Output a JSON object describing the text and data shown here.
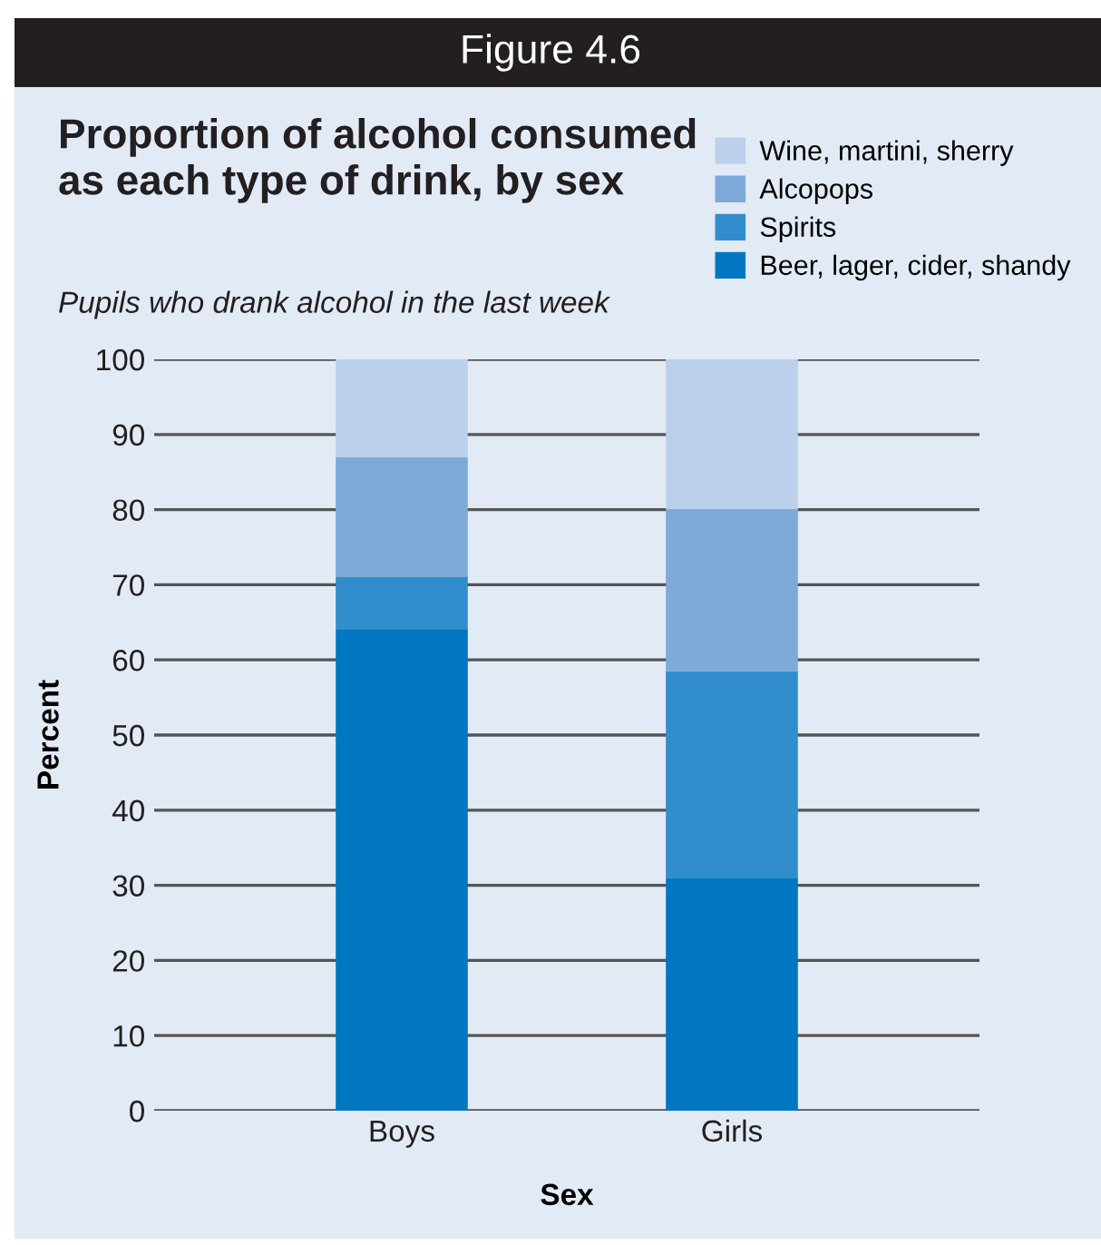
{
  "chart_data": {
    "type": "bar",
    "title": "Proportion of alcohol consumed as each type of drink, by sex",
    "subtitle": "Pupils who drank alcohol in the last week",
    "annotations": [
      "Figure 4.6"
    ],
    "xlabel": "Sex",
    "ylabel": "Percent",
    "categories": [
      "Boys",
      "Girls"
    ],
    "stacked": true,
    "series": [
      {
        "name": "Beer, lager, cider, shandy",
        "color": "#0077c0",
        "values": [
          64,
          31
        ]
      },
      {
        "name": "Spirits",
        "color": "#318dcc",
        "values": [
          7,
          27.5
        ]
      },
      {
        "name": "Alcopops",
        "color": "#7daad9",
        "values": [
          16,
          21.5
        ]
      },
      {
        "name": "Wine, martini, sherry",
        "color": "#bbd0ea",
        "values": [
          13,
          20
        ]
      }
    ],
    "ylim": [
      0,
      100
    ],
    "yticks": [
      0,
      10,
      20,
      30,
      40,
      50,
      60,
      70,
      80,
      90,
      100
    ],
    "grid": "y",
    "legend": "top right"
  }
}
